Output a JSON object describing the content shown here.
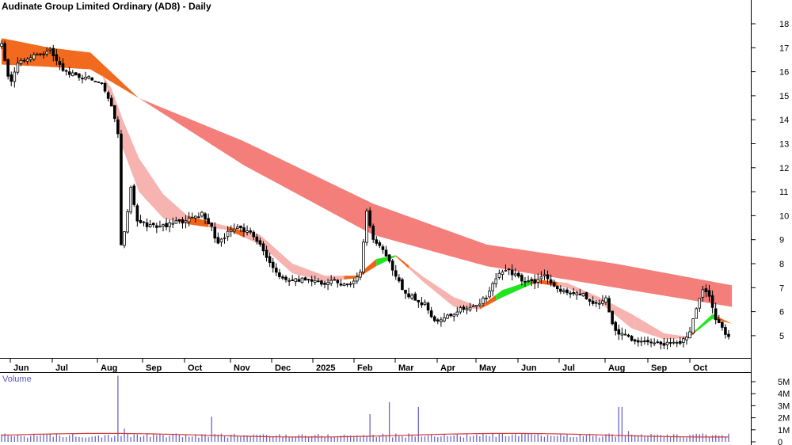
{
  "chart_data": [
    {
      "type": "candlestick",
      "title": "Audinate Group Limited Ordinary (AD8) - Daily",
      "ylim": [
        4,
        19
      ],
      "y_ticks": [
        5,
        6,
        7,
        8,
        9,
        10,
        11,
        12,
        13,
        14,
        15,
        16,
        17,
        18
      ],
      "x_tick_labels": [
        "Jun",
        "Jul",
        "Aug",
        "Sep",
        "Oct",
        "Nov",
        "Dec",
        "2025",
        "Feb",
        "Mar",
        "Apr",
        "May",
        "Jun",
        "Jul",
        "Aug",
        "Sep",
        "Oct"
      ],
      "price_path": [
        {
          "t": 0,
          "c": 17.1
        },
        {
          "t": 5,
          "c": 15.5
        },
        {
          "t": 10,
          "c": 16.3
        },
        {
          "t": 20,
          "c": 16.7
        },
        {
          "t": 30,
          "c": 16.9
        },
        {
          "t": 38,
          "c": 16.0
        },
        {
          "t": 50,
          "c": 15.8
        },
        {
          "t": 62,
          "c": 15.6
        },
        {
          "t": 68,
          "c": 14.6
        },
        {
          "t": 72,
          "c": 13.5
        },
        {
          "t": 73,
          "c": 8.5
        },
        {
          "t": 76,
          "c": 9.3
        },
        {
          "t": 80,
          "c": 11.2
        },
        {
          "t": 84,
          "c": 9.8
        },
        {
          "t": 90,
          "c": 9.6
        },
        {
          "t": 100,
          "c": 9.55
        },
        {
          "t": 110,
          "c": 9.75
        },
        {
          "t": 118,
          "c": 9.85
        },
        {
          "t": 124,
          "c": 10.1
        },
        {
          "t": 130,
          "c": 9.5
        },
        {
          "t": 134,
          "c": 8.8
        },
        {
          "t": 140,
          "c": 9.3
        },
        {
          "t": 148,
          "c": 9.5
        },
        {
          "t": 155,
          "c": 9.2
        },
        {
          "t": 160,
          "c": 8.8
        },
        {
          "t": 166,
          "c": 8.0
        },
        {
          "t": 172,
          "c": 7.4
        },
        {
          "t": 180,
          "c": 7.3
        },
        {
          "t": 190,
          "c": 7.4
        },
        {
          "t": 198,
          "c": 7.15
        },
        {
          "t": 205,
          "c": 7.3
        },
        {
          "t": 212,
          "c": 7.1
        },
        {
          "t": 218,
          "c": 7.3
        },
        {
          "t": 222,
          "c": 7.6
        },
        {
          "t": 226,
          "c": 10.2
        },
        {
          "t": 230,
          "c": 9.0
        },
        {
          "t": 236,
          "c": 8.6
        },
        {
          "t": 242,
          "c": 7.8
        },
        {
          "t": 248,
          "c": 6.9
        },
        {
          "t": 256,
          "c": 6.5
        },
        {
          "t": 262,
          "c": 6.3
        },
        {
          "t": 268,
          "c": 5.6
        },
        {
          "t": 276,
          "c": 5.8
        },
        {
          "t": 284,
          "c": 6.1
        },
        {
          "t": 292,
          "c": 6.2
        },
        {
          "t": 300,
          "c": 6.6
        },
        {
          "t": 306,
          "c": 7.4
        },
        {
          "t": 312,
          "c": 7.75
        },
        {
          "t": 316,
          "c": 7.6
        },
        {
          "t": 322,
          "c": 7.3
        },
        {
          "t": 330,
          "c": 7.2
        },
        {
          "t": 336,
          "c": 7.45
        },
        {
          "t": 342,
          "c": 7.0
        },
        {
          "t": 350,
          "c": 6.8
        },
        {
          "t": 360,
          "c": 6.7
        },
        {
          "t": 368,
          "c": 6.3
        },
        {
          "t": 374,
          "c": 6.5
        },
        {
          "t": 378,
          "c": 5.5
        },
        {
          "t": 382,
          "c": 5.1
        },
        {
          "t": 390,
          "c": 4.85
        },
        {
          "t": 400,
          "c": 4.7
        },
        {
          "t": 410,
          "c": 4.65
        },
        {
          "t": 420,
          "c": 4.7
        },
        {
          "t": 426,
          "c": 5.1
        },
        {
          "t": 430,
          "c": 6.2
        },
        {
          "t": 434,
          "c": 7.0
        },
        {
          "t": 438,
          "c": 6.6
        },
        {
          "t": 442,
          "c": 5.6
        },
        {
          "t": 446,
          "c": 5.3
        },
        {
          "t": 450,
          "c": 4.95
        }
      ],
      "ribbon_long": [
        {
          "t": 0,
          "lo": 16.3,
          "hi": 17.4
        },
        {
          "t": 30,
          "lo": 16.2,
          "hi": 17.0
        },
        {
          "t": 55,
          "lo": 16.1,
          "hi": 16.8
        },
        {
          "t": 85,
          "lo": 14.9,
          "hi": 14.9
        },
        {
          "t": 150,
          "lo": 12.1,
          "hi": 13.1
        },
        {
          "t": 230,
          "lo": 9.2,
          "hi": 10.5
        },
        {
          "t": 300,
          "lo": 7.9,
          "hi": 8.8
        },
        {
          "t": 380,
          "lo": 7.0,
          "hi": 8.0
        },
        {
          "t": 452,
          "lo": 6.2,
          "hi": 7.1
        }
      ],
      "ribbon_short": [
        {
          "t": 62,
          "lo": 15.9,
          "hi": 15.9
        },
        {
          "t": 68,
          "lo": 14.8,
          "hi": 15.3
        },
        {
          "t": 75,
          "lo": 12.8,
          "hi": 14.0
        },
        {
          "t": 85,
          "lo": 11.0,
          "hi": 12.4
        },
        {
          "t": 100,
          "lo": 9.9,
          "hi": 10.9
        },
        {
          "t": 115,
          "lo": 9.65,
          "hi": 10.0
        },
        {
          "t": 140,
          "lo": 9.4,
          "hi": 9.55
        },
        {
          "t": 160,
          "lo": 8.8,
          "hi": 9.2
        },
        {
          "t": 180,
          "lo": 7.6,
          "hi": 8.0
        },
        {
          "t": 200,
          "lo": 7.25,
          "hi": 7.5
        },
        {
          "t": 220,
          "lo": 7.4,
          "hi": 7.5
        },
        {
          "t": 232,
          "lo": 7.9,
          "hi": 8.2
        },
        {
          "t": 244,
          "lo": 8.3,
          "hi": 8.35
        },
        {
          "t": 260,
          "lo": 7.3,
          "hi": 7.5
        },
        {
          "t": 280,
          "lo": 6.2,
          "hi": 6.6
        },
        {
          "t": 296,
          "lo": 6.1,
          "hi": 6.2
        },
        {
          "t": 310,
          "lo": 6.6,
          "hi": 6.9
        },
        {
          "t": 330,
          "lo": 7.2,
          "hi": 7.35
        },
        {
          "t": 350,
          "lo": 7.0,
          "hi": 7.2
        },
        {
          "t": 370,
          "lo": 6.4,
          "hi": 6.6
        },
        {
          "t": 390,
          "lo": 5.3,
          "hi": 5.9
        },
        {
          "t": 410,
          "lo": 4.85,
          "hi": 5.1
        },
        {
          "t": 425,
          "lo": 4.9,
          "hi": 4.95
        },
        {
          "t": 440,
          "lo": 5.7,
          "hi": 5.9
        },
        {
          "t": 452,
          "lo": 5.5,
          "hi": 5.5
        }
      ],
      "ribbon_colors": {
        "long": "#f47f7a",
        "long_early": "#f26a1e",
        "short_down": "#f7b3b0",
        "short_up": "#21e61f",
        "short_flat": "#f06418",
        "candle": "#000000"
      }
    },
    {
      "type": "bar",
      "title": "Volume",
      "ylim": [
        0,
        6
      ],
      "y_ticks": [
        "5M",
        "4M",
        "3M",
        "2M",
        "1M",
        "0"
      ],
      "spikes": [
        {
          "t": 72,
          "v": 5.5
        },
        {
          "t": 76,
          "v": 1.1
        },
        {
          "t": 130,
          "v": 2.1
        },
        {
          "t": 228,
          "v": 2.3
        },
        {
          "t": 240,
          "v": 3.3
        },
        {
          "t": 258,
          "v": 2.9
        },
        {
          "t": 383,
          "v": 2.9
        },
        {
          "t": 388,
          "v": 0.9
        }
      ],
      "volume_colors": {
        "bars": "#6a66c8",
        "average": "#d23a3a"
      }
    }
  ]
}
